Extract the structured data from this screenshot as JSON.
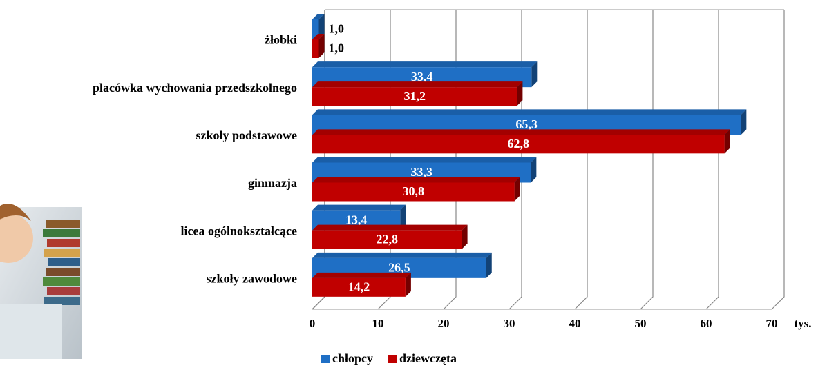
{
  "chart_data": {
    "type": "bar",
    "orientation": "horizontal",
    "categories": [
      "żłobki",
      "placówka wychowania przedszkolnego",
      "szkoły podstawowe",
      "gimnazja",
      "licea ogólnokształcące",
      "szkoły zawodowe"
    ],
    "series": [
      {
        "name": "chłopcy",
        "color": "#1f6fc5",
        "values": [
          1.0,
          33.4,
          65.3,
          33.3,
          13.4,
          26.5
        ],
        "value_labels": [
          "1,0",
          "33,4",
          "65,3",
          "33,3",
          "13,4",
          "26,5"
        ]
      },
      {
        "name": "dziewczęta",
        "color": "#c00000",
        "values": [
          1.0,
          31.2,
          62.8,
          30.8,
          22.8,
          14.2
        ],
        "value_labels": [
          "1,0",
          "31,2",
          "62,8",
          "30,8",
          "22,8",
          "14,2"
        ]
      }
    ],
    "xlim": [
      0,
      70
    ],
    "xticks": [
      0,
      10,
      20,
      30,
      40,
      50,
      60,
      70
    ],
    "x_unit": "tys.",
    "grid": true,
    "legend": "bottom"
  }
}
